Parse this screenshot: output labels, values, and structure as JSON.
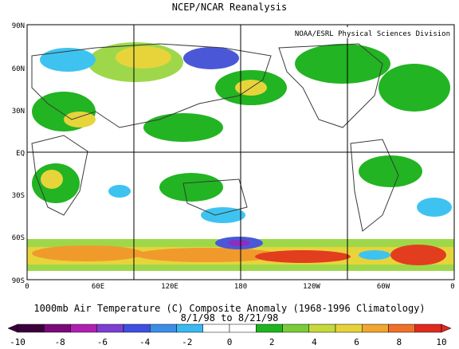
{
  "title": "NCEP/NCAR Reanalysis",
  "credit": "NOAA/ESRL Physical Sciences Division",
  "lat_labels": [
    "90N",
    "60N",
    "30N",
    "EQ",
    "30S",
    "60S",
    "90S"
  ],
  "lon_labels": [
    "0",
    "60E",
    "120E",
    "180",
    "120W",
    "60W",
    "0"
  ],
  "caption_line1": "1000mb Air Temperature (C) Composite Anomaly (1968-1996 Climatology)",
  "caption_line2": "8/1/98  to 8/21/98",
  "colorbar": {
    "labels": [
      "-10",
      "-8",
      "-6",
      "-4",
      "-2",
      "0",
      "2",
      "4",
      "6",
      "8",
      "10"
    ],
    "colors": [
      "#3b003b",
      "#7a0a7a",
      "#b020b0",
      "#7b3fd1",
      "#3f4fe0",
      "#3a8ee6",
      "#39b9ef",
      "#ffffff",
      "#ffffff",
      "#1fb41f",
      "#7acc3a",
      "#c6d83c",
      "#e6d339",
      "#f0a630",
      "#f0702a",
      "#e02a1e"
    ]
  },
  "anomaly_colors": {
    "green": "#22b422",
    "lightgreen": "#9ed84a",
    "yellow": "#e7d43b",
    "orange": "#f09a2c",
    "red": "#e23d1f",
    "cyan": "#3ec3f0",
    "blue": "#4a58d8",
    "purple": "#8a2fc0"
  }
}
